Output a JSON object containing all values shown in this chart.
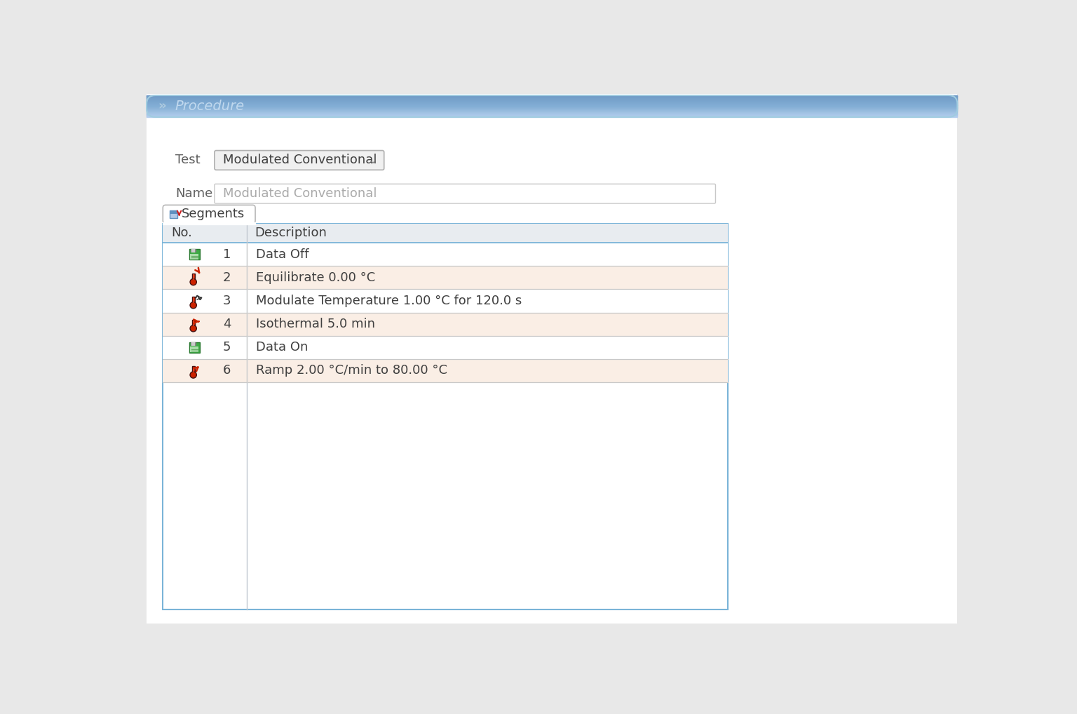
{
  "bg_color": "#e8e8e8",
  "header_text": "Procedure",
  "header_text_color": "#c0d8ee",
  "header_chevron_color": "#b0cce0",
  "header_bg_color": "#7ab8d8",
  "header_bg_edge": "#90c4dc",
  "test_label": "Test",
  "test_value": "Modulated Conventional",
  "name_label": "Name",
  "name_value": "Modulated Conventional",
  "tab_text": "Segments",
  "col_no": "No.",
  "col_desc": "Description",
  "rows": [
    {
      "no": 1,
      "desc": "Data Off",
      "bg": "#ffffff",
      "icon": "save_green"
    },
    {
      "no": 2,
      "desc": "Equilibrate 0.00 °C",
      "bg": "#faeee5",
      "icon": "therm_eq"
    },
    {
      "no": 3,
      "desc": "Modulate Temperature 1.00 °C for 120.0 s",
      "bg": "#ffffff",
      "icon": "therm_wave"
    },
    {
      "no": 4,
      "desc": "Isothermal 5.0 min",
      "bg": "#faeee5",
      "icon": "therm_iso"
    },
    {
      "no": 5,
      "desc": "Data On",
      "bg": "#ffffff",
      "icon": "save_green"
    },
    {
      "no": 6,
      "desc": "Ramp 2.00 °C/min to 80.00 °C",
      "bg": "#faeee5",
      "icon": "therm_ramp"
    }
  ],
  "table_border_color": "#7ab4d8",
  "header_row_bg": "#e8ecf0",
  "inner_line_color": "#c8c8c8",
  "text_color_dark": "#404040",
  "text_color_blue": "#3060c0",
  "label_color": "#606060",
  "dropdown_bg": "#f0f0f0",
  "dropdown_border": "#b0b0b0",
  "name_box_border": "#c8c8c8"
}
